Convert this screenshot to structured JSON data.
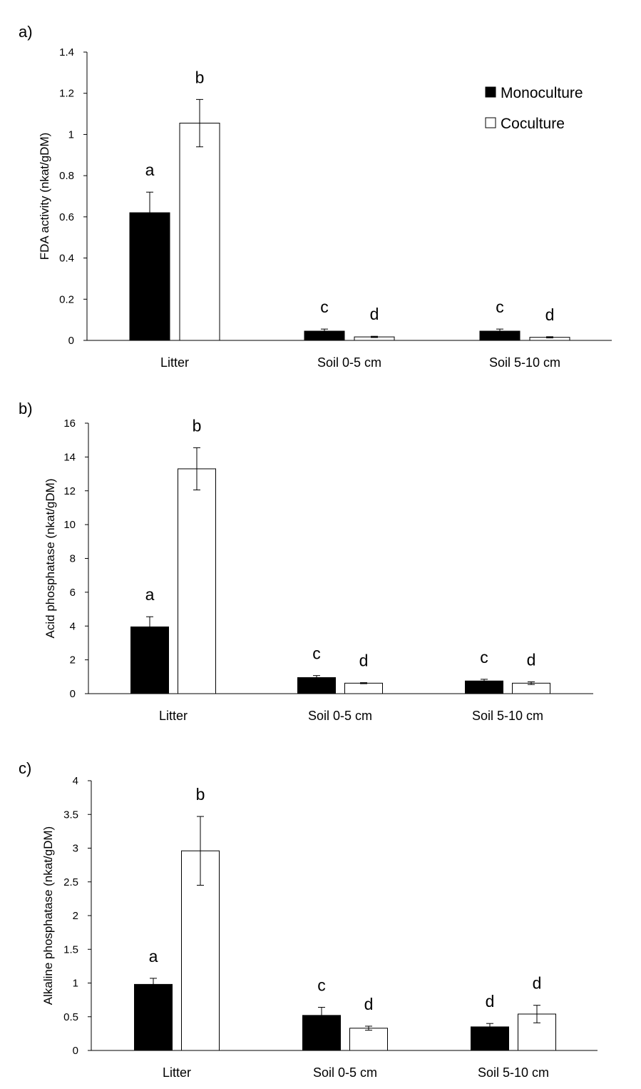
{
  "figure": {
    "legend": [
      {
        "name": "Monoculture",
        "color": "#000000"
      },
      {
        "name": "Coculture",
        "color": "#ffffff"
      }
    ]
  },
  "chart_data": [
    {
      "panel": "a)",
      "type": "bar",
      "categories": [
        "Litter",
        "Soil 0-5 cm",
        "Soil 5-10 cm"
      ],
      "series": [
        {
          "name": "Monoculture",
          "values": [
            0.62,
            0.045,
            0.045
          ],
          "errors": [
            0.1,
            0.01,
            0.01
          ],
          "letters": [
            "a",
            "c",
            "c"
          ]
        },
        {
          "name": "Coculture",
          "values": [
            1.055,
            0.017,
            0.015
          ],
          "errors": [
            0.115,
            0.003,
            0.003
          ],
          "letters": [
            "b",
            "d",
            "d"
          ]
        }
      ],
      "ylabel": "FDA activity (nkat/gDM)",
      "ylim": [
        0,
        1.4
      ],
      "yticks": [
        "0",
        "0.2",
        "0.4",
        "0.6",
        "0.8",
        "1",
        "1.2",
        "1.4"
      ],
      "grid": false,
      "legend": "top-right"
    },
    {
      "panel": "b)",
      "type": "bar",
      "categories": [
        "Litter",
        "Soil 0-5 cm",
        "Soil 5-10 cm"
      ],
      "series": [
        {
          "name": "Monoculture",
          "values": [
            3.95,
            0.95,
            0.75
          ],
          "errors": [
            0.6,
            0.12,
            0.1
          ],
          "letters": [
            "a",
            "c",
            "c"
          ]
        },
        {
          "name": "Coculture",
          "values": [
            13.3,
            0.62,
            0.62
          ],
          "errors": [
            1.25,
            0.03,
            0.08
          ],
          "letters": [
            "b",
            "d",
            "d"
          ]
        }
      ],
      "ylabel": "Acid phosphatase (nkat/gDM)",
      "ylim": [
        0,
        16
      ],
      "yticks": [
        "0",
        "2",
        "4",
        "6",
        "8",
        "10",
        "12",
        "14",
        "16"
      ],
      "grid": false
    },
    {
      "panel": "c)",
      "type": "bar",
      "categories": [
        "Litter",
        "Soil 0-5 cm",
        "Soil 5-10 cm"
      ],
      "series": [
        {
          "name": "Monoculture",
          "values": [
            0.98,
            0.52,
            0.35
          ],
          "errors": [
            0.09,
            0.12,
            0.05
          ],
          "letters": [
            "a",
            "c",
            "d"
          ]
        },
        {
          "name": "Coculture",
          "values": [
            2.96,
            0.33,
            0.54
          ],
          "errors": [
            0.51,
            0.03,
            0.13
          ],
          "letters": [
            "b",
            "d",
            "d"
          ]
        }
      ],
      "ylabel": "Alkaline phosphatase (nkat/gDM)",
      "ylim": [
        0,
        4
      ],
      "yticks": [
        "0",
        "0.5",
        "1",
        "1.5",
        "2",
        "2.5",
        "3",
        "3.5",
        "4"
      ],
      "grid": false
    }
  ]
}
